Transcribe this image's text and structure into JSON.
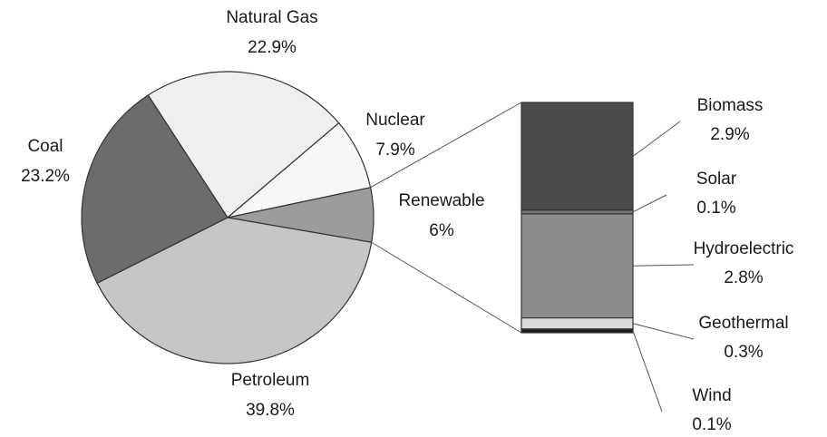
{
  "chart_data": [
    {
      "type": "pie",
      "categories": [
        "Natural Gas",
        "Nuclear",
        "Renewable",
        "Petroleum",
        "Coal"
      ],
      "values": [
        22.9,
        7.9,
        6,
        39.8,
        23.2
      ],
      "value_labels": [
        "22.9%",
        "7.9%",
        "6%",
        "39.8%",
        "23.2%"
      ],
      "colors": [
        "#efefef",
        "#f8f8f8",
        "#9c9c9c",
        "#c6c6c6",
        "#6c6c6c"
      ]
    },
    {
      "type": "stacked-bar",
      "categories": [
        "Biomass",
        "Solar",
        "Hydroelectric",
        "Geothermal",
        "Wind"
      ],
      "values": [
        2.9,
        0.1,
        2.8,
        0.3,
        0.1
      ],
      "value_labels": [
        "2.9%",
        "0.1%",
        "2.8%",
        "0.3%",
        "0.1%"
      ],
      "colors": [
        "#4b4b4b",
        "#777777",
        "#8c8c8c",
        "#d9d9d9",
        "#1e1e1e"
      ]
    }
  ]
}
